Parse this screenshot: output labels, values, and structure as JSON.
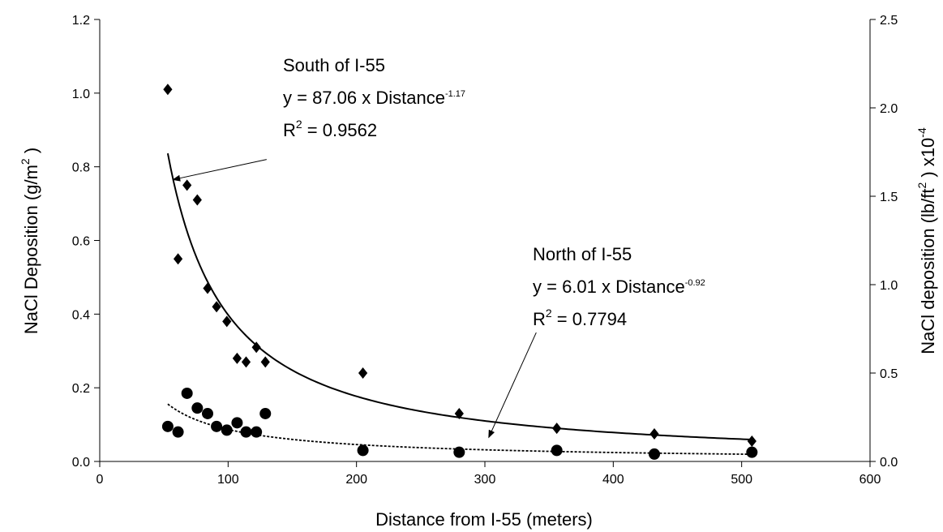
{
  "chart_data": {
    "type": "scatter",
    "xlabel": "Distance from I-55 (meters)",
    "ylabel": {
      "prefix": "NaCl Deposition (g/m",
      "sup": "2",
      "suffix": " )"
    },
    "y2label": {
      "prefix": "NaCl deposition  (lb/ft",
      "sup": "2",
      "mid": " ) x10",
      "exp": "-4"
    },
    "xlim": [
      0,
      600
    ],
    "ylim": [
      0,
      1.2
    ],
    "y2lim": [
      0,
      2.5
    ],
    "xticks": [
      "0",
      "100",
      "200",
      "300",
      "400",
      "500",
      "600"
    ],
    "yticks": [
      "0.0",
      "0.2",
      "0.4",
      "0.6",
      "0.8",
      "1.0",
      "1.2"
    ],
    "y2ticks": [
      "0.0",
      "0.5",
      "1.0",
      "1.5",
      "2.0",
      "2.5"
    ],
    "grid": false,
    "series": [
      {
        "marker": "diamond",
        "x": [
          53,
          61,
          68,
          76,
          84,
          91,
          99,
          107,
          114,
          122,
          129,
          205,
          280,
          356,
          432,
          508
        ],
        "y": [
          1.01,
          0.55,
          0.75,
          0.71,
          0.47,
          0.42,
          0.38,
          0.28,
          0.27,
          0.31,
          0.27,
          0.24,
          0.13,
          0.09,
          0.075,
          0.055
        ]
      },
      {
        "marker": "circle",
        "x": [
          53,
          61,
          68,
          76,
          84,
          91,
          99,
          107,
          114,
          122,
          129,
          205,
          280,
          356,
          432,
          508
        ],
        "y": [
          0.095,
          0.08,
          0.185,
          0.145,
          0.13,
          0.095,
          0.085,
          0.105,
          0.08,
          0.08,
          0.13,
          0.03,
          0.025,
          0.03,
          0.02,
          0.025
        ]
      }
    ],
    "fits": [
      {
        "coef": 87.06,
        "exp": -1.17,
        "style": "solid",
        "x_range": [
          53,
          508
        ]
      },
      {
        "coef": 6.01,
        "exp": -0.92,
        "style": "dotted",
        "x_range": [
          53,
          508
        ]
      }
    ],
    "annotations": [
      {
        "line1": "South of I-55",
        "line2_prefix": "y = 87.06 x Distance",
        "line2_exp": "-1.17",
        "line3_prefix": "R",
        "line3_sup": "2",
        "line3_suffix": " = 0.9562",
        "arrow_from": [
          130,
          0.82
        ],
        "arrow_to": [
          57,
          0.765
        ]
      },
      {
        "line1": "North of I-55",
        "line2_prefix": "y = 6.01 x Distance",
        "line2_exp": "-0.92",
        "line3_prefix": "R",
        "line3_sup": "2",
        "line3_suffix": " = 0.7794",
        "arrow_from": [
          340,
          0.35
        ],
        "arrow_to": [
          303,
          0.065
        ]
      }
    ]
  }
}
